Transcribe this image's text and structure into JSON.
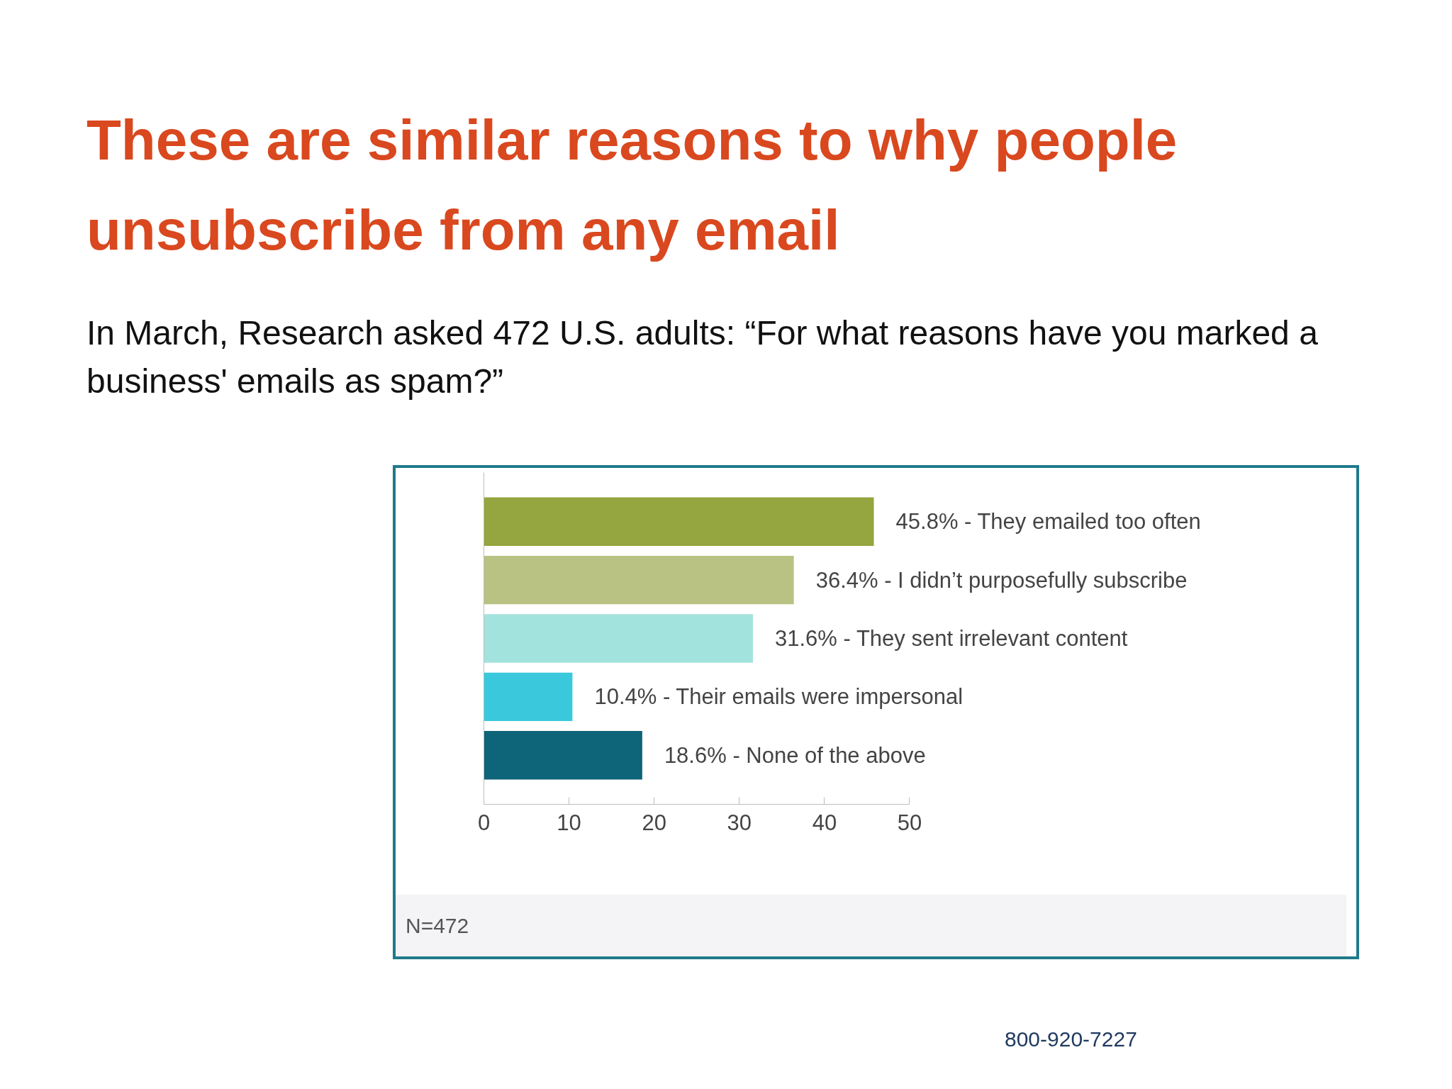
{
  "chart_data": {
    "type": "bar",
    "orientation": "horizontal",
    "title": "These are similar reasons to why people unsubscribe from any email",
    "subtitle": "In March, Research asked 472 U.S. adults: “For what reasons have you marked a business' emails as spam?”",
    "categories": [
      null,
      null,
      null,
      null,
      null
    ],
    "values": [
      45.8,
      36.4,
      31.6,
      10.4,
      18.6
    ],
    "colors": [
      "#95a53f",
      "#b9c282",
      "#a3e3de",
      "#3ac8dc",
      "#0e6478"
    ],
    "value_labels": [
      "45.8% - They emailed too often",
      "36.4% - I didn’t purposefully subscribe",
      "31.6% - They sent irrelevant content",
      "10.4% - Their emails were impersonal",
      "18.6% - None of the above"
    ],
    "xlim": [
      0,
      50
    ],
    "xticks": [
      0,
      10,
      20,
      30,
      40,
      50
    ],
    "annotations": [
      "N=472",
      "800-920-7227"
    ]
  }
}
